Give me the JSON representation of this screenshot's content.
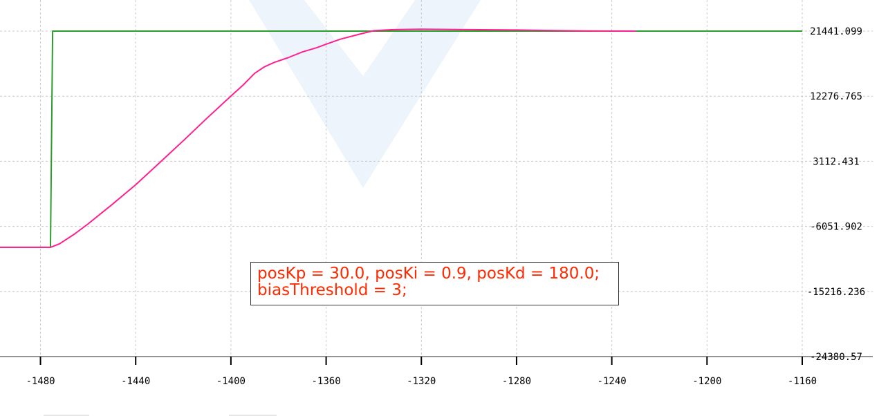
{
  "chart_data": {
    "type": "line",
    "xlim": [
      -1497,
      -1160
    ],
    "ylim": [
      -24380.57,
      21441.099
    ],
    "grid": true,
    "x_ticks": [
      -1480,
      -1440,
      -1400,
      -1360,
      -1320,
      -1280,
      -1240,
      -1200,
      -1160
    ],
    "x_tick_labels": [
      "-1480",
      "-1440",
      "-1400",
      "-1360",
      "-1320",
      "-1280",
      "-1240",
      "-1200",
      "-1160"
    ],
    "y_ticks": [
      21441.099,
      12276.765,
      3112.431,
      -6051.902,
      -15216.236,
      -24380.57
    ],
    "y_tick_labels": [
      "21441.099",
      "12276.765",
      "3112.431",
      "-6051.902",
      "-15216.236",
      "-24380.57"
    ],
    "series": [
      {
        "color": "#2a9d2a",
        "x": [
          -1497,
          -1475.8,
          -1474.9,
          -1470,
          -1440,
          -1400,
          -1360,
          -1320,
          -1280,
          -1240,
          -1200,
          -1160
        ],
        "y": [
          -9000,
          -9000,
          21441.099,
          21441.099,
          21441.099,
          21441.099,
          21441.099,
          21441.099,
          21441.099,
          21441.099,
          21441.099,
          21441.099
        ]
      },
      {
        "color": "#ff2090",
        "x": [
          -1497,
          -1475.8,
          -1472,
          -1466,
          -1460,
          -1450,
          -1440,
          -1430,
          -1420,
          -1410,
          -1400,
          -1395,
          -1390,
          -1386,
          -1382,
          -1376,
          -1370,
          -1364,
          -1360,
          -1354,
          -1346,
          -1340,
          -1332,
          -1320,
          -1300,
          -1280,
          -1260,
          -1250,
          -1240,
          -1230
        ],
        "y": [
          -9000,
          -9000,
          -8500,
          -7200,
          -5700,
          -3000,
          -200,
          2900,
          6000,
          9200,
          12300,
          13800,
          15500,
          16400,
          17000,
          17700,
          18500,
          19100,
          19600,
          20300,
          21000,
          21500,
          21650,
          21700,
          21650,
          21600,
          21500,
          21470,
          21450,
          21441
        ]
      }
    ],
    "annotations": [
      "posKp = 30.0, posKi = 0.9, posKd = 180.0;",
      "biasThreshold = 3;"
    ]
  }
}
